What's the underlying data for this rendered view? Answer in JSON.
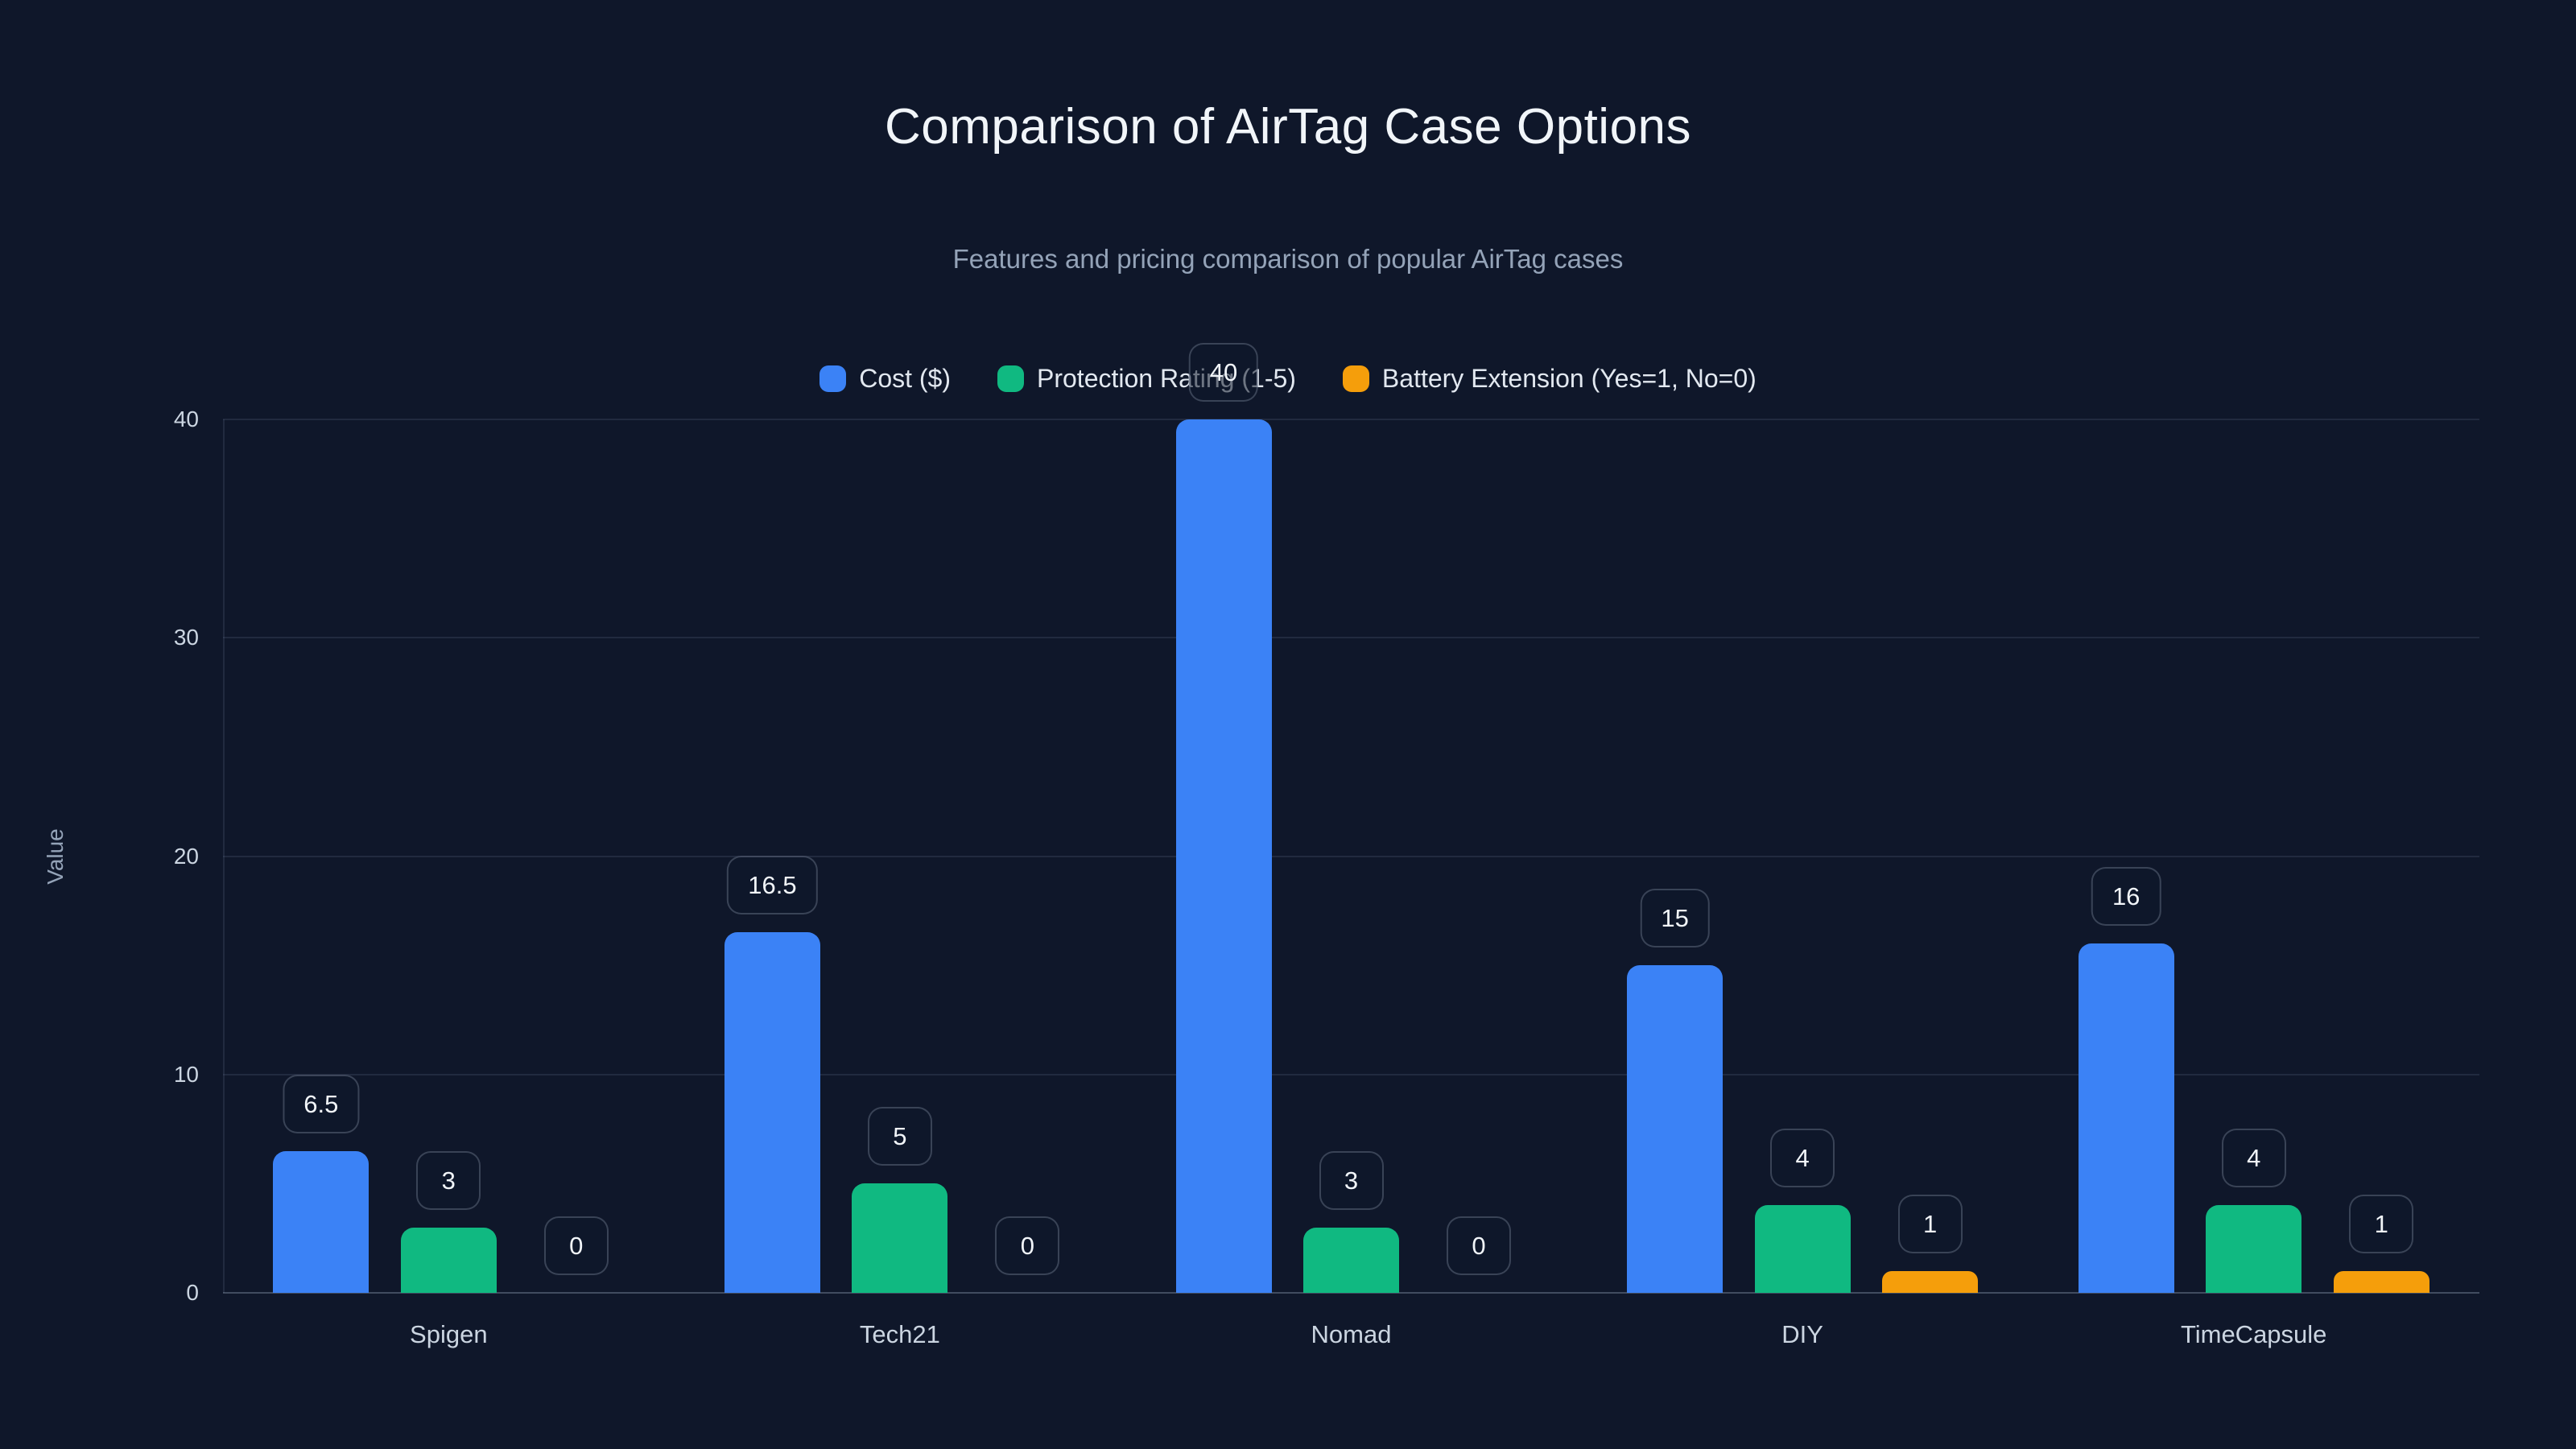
{
  "header": {
    "title": "Comparison of AirTag Case Options",
    "subtitle": "Features and pricing comparison of popular AirTag cases"
  },
  "colors": {
    "background": "#0f172a",
    "title_text": "#f1f5f9",
    "muted_text": "#94a3b8",
    "axis_text": "#cbd5e1",
    "legend_text": "#e2e8f0",
    "gridline": "rgba(100,116,139,0.22)",
    "series_blue": "#3b82f6",
    "series_green": "#10b981",
    "series_orange": "#f59e0b"
  },
  "chart_data": {
    "type": "bar",
    "title": "Comparison of AirTag Case Options",
    "subtitle": "Features and pricing comparison of popular AirTag cases",
    "categories": [
      "Spigen",
      "Tech21",
      "Nomad",
      "DIY",
      "TimeCapsule"
    ],
    "series": [
      {
        "name": "Cost ($)",
        "color": "#3b82f6",
        "values": [
          6.5,
          16.5,
          40,
          15,
          16
        ]
      },
      {
        "name": "Protection Rating (1-5)",
        "color": "#10b981",
        "values": [
          3,
          5,
          3,
          4,
          4
        ]
      },
      {
        "name": "Battery Extension (Yes=1, No=0)",
        "color": "#f59e0b",
        "values": [
          0,
          0,
          0,
          1,
          1
        ]
      }
    ],
    "xlabel": "",
    "ylabel": "Value",
    "ylim": [
      0,
      40
    ],
    "yticks": [
      0,
      10,
      20,
      30,
      40
    ],
    "grid": true,
    "legend_position": "top",
    "bar_value_labels_shown": true
  }
}
